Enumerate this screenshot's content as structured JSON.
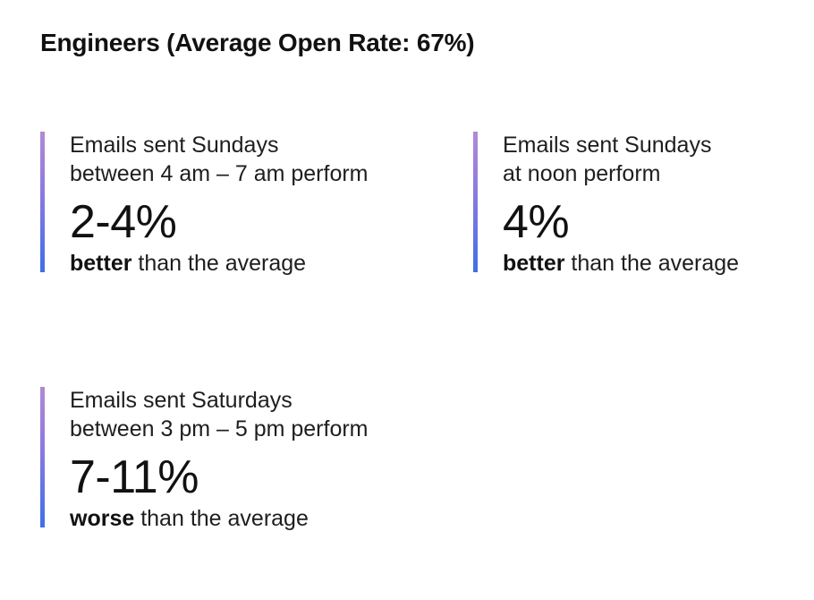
{
  "heading": "Engineers (Average Open Rate: 67%)",
  "stats": [
    {
      "line1": "Emails sent Sundays",
      "line2": "between 4 am – 7 am perform",
      "value": "2-4%",
      "direction": "better",
      "suffix": " than the average"
    },
    {
      "line1": "Emails sent Sundays",
      "line2": "at noon perform",
      "value": "4%",
      "direction": "better",
      "suffix": " than the average"
    },
    {
      "line1": "Emails sent Saturdays",
      "line2": "between 3 pm – 5 pm perform",
      "value": "7-11%",
      "direction": "worse",
      "suffix": " than the average"
    }
  ],
  "colors": {
    "accent_top": "#b08ad6",
    "accent_bottom": "#3f6fe6",
    "text": "#1a1a1a"
  }
}
